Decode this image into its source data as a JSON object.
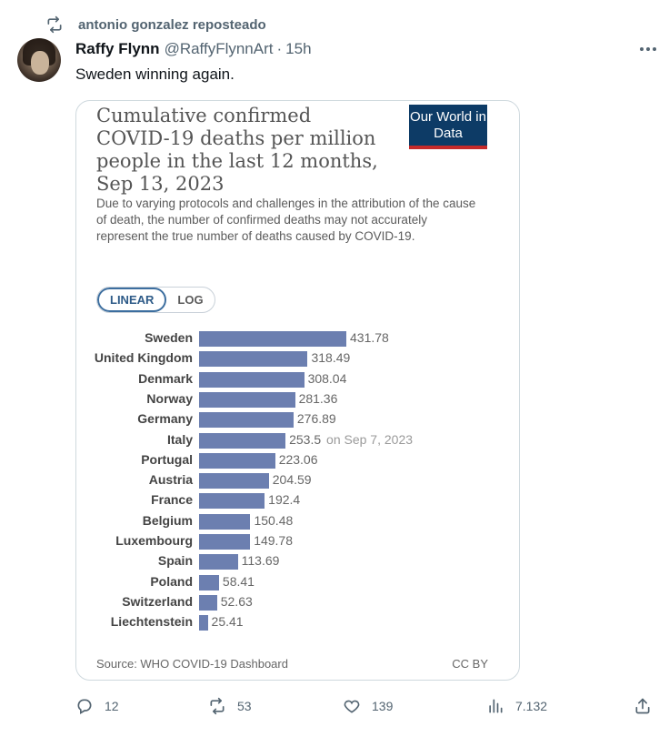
{
  "repost": {
    "icon": "repost-icon",
    "text": "antonio gonzalez reposteado"
  },
  "tweet": {
    "display_name": "Raffy Flynn",
    "handle": "@RaffyFlynnArt",
    "separator": "·",
    "time": "15h",
    "text": "Sweden winning again."
  },
  "chart_data": {
    "type": "bar",
    "title": "Cumulative confirmed COVID-19 deaths per million people in the last 12 months, Sep 13, 2023",
    "subtitle": "Due to varying protocols and challenges in the attribution of the cause of death, the number of confirmed deaths may not accurately represent the true number of deaths caused by COVID-19.",
    "logo_text": "Our World in Data",
    "scale_options": [
      "LINEAR",
      "LOG"
    ],
    "selected_scale": "LINEAR",
    "orientation": "horizontal",
    "categories": [
      "Sweden",
      "United Kingdom",
      "Denmark",
      "Norway",
      "Germany",
      "Italy",
      "Portugal",
      "Austria",
      "France",
      "Belgium",
      "Luxembourg",
      "Spain",
      "Poland",
      "Switzerland",
      "Liechtenstein"
    ],
    "values": [
      431.78,
      318.49,
      308.04,
      281.36,
      276.89,
      253.5,
      223.06,
      204.59,
      192.4,
      150.48,
      149.78,
      113.69,
      58.41,
      52.63,
      25.41
    ],
    "value_labels": [
      "431.78",
      "318.49",
      "308.04",
      "281.36",
      "276.89",
      "253.5",
      "223.06",
      "204.59",
      "192.4",
      "150.48",
      "149.78",
      "113.69",
      "58.41",
      "52.63",
      "25.41"
    ],
    "annotations": [
      {
        "category": "Italy",
        "text": "on Sep 7, 2023"
      }
    ],
    "xlim": [
      0,
      431.78
    ],
    "bar_color": "#6c7fb0",
    "source": "Source: WHO COVID-19 Dashboard",
    "license": "CC BY"
  },
  "actions": {
    "reply": {
      "icon": "reply-icon",
      "count": "12"
    },
    "repost": {
      "icon": "repost-icon",
      "count": "53"
    },
    "like": {
      "icon": "heart-icon",
      "count": "139"
    },
    "views": {
      "icon": "views-icon",
      "count": "7.132"
    },
    "share": {
      "icon": "share-icon"
    }
  },
  "colors": {
    "text": "#0f1419",
    "muted": "#536471",
    "border": "#cfd9de",
    "owid_blue": "#0d3b66",
    "owid_red": "#c52a2a"
  }
}
